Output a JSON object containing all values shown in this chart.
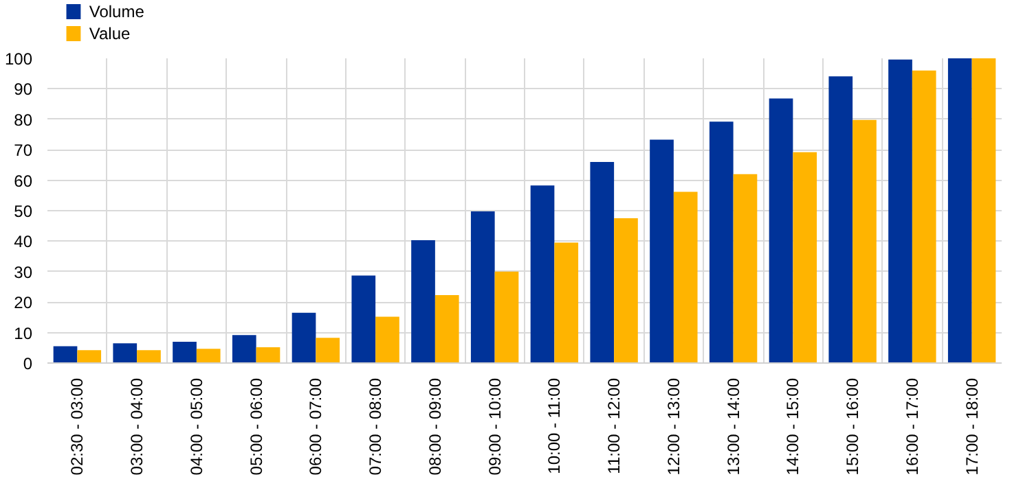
{
  "chart_data": {
    "type": "bar",
    "categories": [
      "02:30 - 03:00",
      "03:00 - 04:00",
      "04:00 - 05:00",
      "05:00 - 06:00",
      "06:00 - 07:00",
      "07:00 - 08:00",
      "08:00 - 09:00",
      "09:00 - 10:00",
      "10:00 - 11:00",
      "11:00 - 12:00",
      "12:00 - 13:00",
      "13:00 - 14:00",
      "14:00 - 15:00",
      "15:00 - 16:00",
      "16:00 - 17:00",
      "17:00 - 18:00"
    ],
    "series": [
      {
        "name": "Volume",
        "color": "#003399",
        "values": [
          5.5,
          6.5,
          7,
          9.2,
          16.5,
          28.7,
          40.3,
          49.8,
          58.3,
          66,
          73.3,
          79.2,
          86.8,
          94.1,
          99.6,
          100
        ]
      },
      {
        "name": "Value",
        "color": "#ffb400",
        "values": [
          4.2,
          4.2,
          4.7,
          5.2,
          8.3,
          15.2,
          22.3,
          30,
          39.5,
          47.5,
          56.2,
          62,
          69.2,
          79.8,
          96,
          100
        ]
      }
    ],
    "ylim": [
      0,
      100
    ],
    "yticks": [
      0,
      10,
      20,
      30,
      40,
      50,
      60,
      70,
      80,
      90,
      100
    ],
    "grid": true,
    "legend": "top left"
  }
}
